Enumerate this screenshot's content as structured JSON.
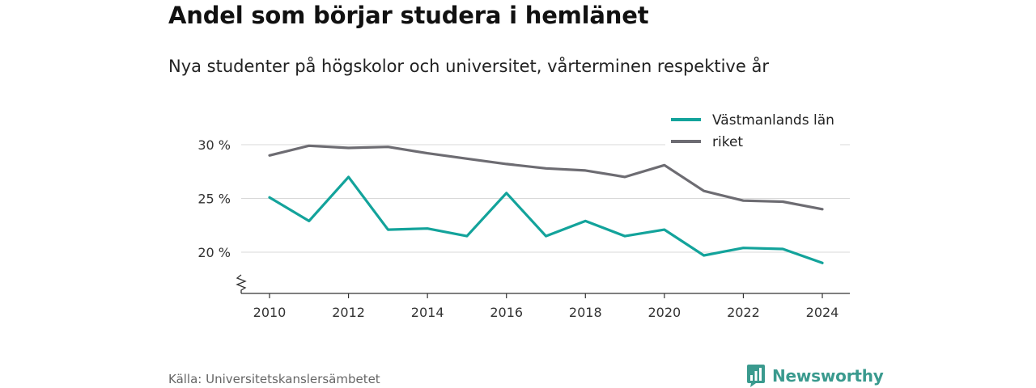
{
  "header": {
    "title": "Andel som börjar studera i hemlänet",
    "subtitle": "Nya studenter på högskolor och universitet, vårterminen respektive år"
  },
  "footer": {
    "source": "Källa: Universitetskanslersämbetet",
    "brand": "Newsworthy"
  },
  "colors": {
    "lan": "#13a39b",
    "riket": "#6d6c72",
    "brand": "#3a9a8e"
  },
  "chart_data": {
    "type": "line",
    "x": [
      2010,
      2011,
      2012,
      2013,
      2014,
      2015,
      2016,
      2017,
      2018,
      2019,
      2020,
      2021,
      2022,
      2023,
      2024
    ],
    "x_tick_labels": [
      "2010",
      "2012",
      "2014",
      "2016",
      "2018",
      "2020",
      "2022",
      "2024"
    ],
    "y_tick_labels": [
      "30 %",
      "25 %",
      "20 %"
    ],
    "y_ticks": [
      30,
      25,
      20
    ],
    "ylim": [
      16,
      31
    ],
    "y_axis_break": true,
    "grid": true,
    "legend_position": "top-right",
    "series": [
      {
        "name": "Västmanlands län",
        "color": "#13a39b",
        "values": [
          25.1,
          22.9,
          27.0,
          22.1,
          22.2,
          21.5,
          25.5,
          21.5,
          22.9,
          21.5,
          22.1,
          19.7,
          20.4,
          20.3,
          19.0
        ]
      },
      {
        "name": "riket",
        "color": "#6d6c72",
        "values": [
          29.0,
          29.9,
          29.7,
          29.8,
          29.2,
          28.7,
          28.2,
          27.8,
          27.6,
          27.0,
          28.1,
          25.7,
          24.8,
          24.7,
          24.0
        ]
      }
    ]
  }
}
